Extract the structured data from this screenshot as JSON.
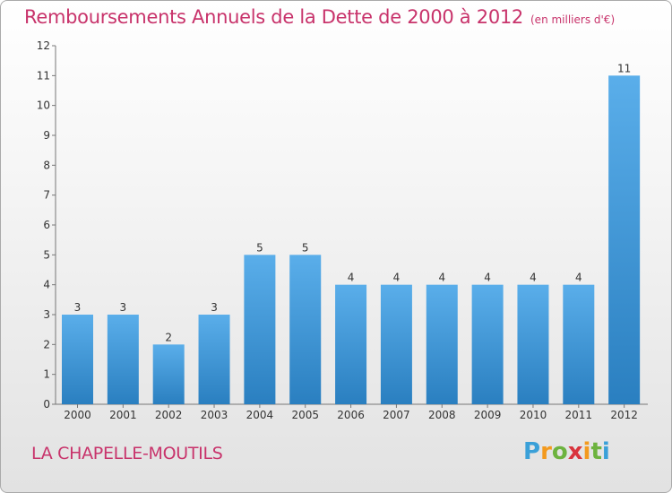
{
  "title": {
    "main": "Remboursements Annuels de la Dette de 2000 à 2012",
    "unit": "(en milliers d'€)"
  },
  "commune": "LA CHAPELLE-MOUTILS",
  "logo": {
    "text": "Proxiti"
  },
  "colors": {
    "accent": "#c8336b",
    "bar_top": "#5aaeea",
    "bar_bottom": "#2a7fc0"
  },
  "chart_data": {
    "type": "bar",
    "categories": [
      "2000",
      "2001",
      "2002",
      "2003",
      "2004",
      "2005",
      "2006",
      "2007",
      "2008",
      "2009",
      "2010",
      "2011",
      "2012"
    ],
    "values": [
      3,
      3,
      2,
      3,
      5,
      5,
      4,
      4,
      4,
      4,
      4,
      4,
      11
    ],
    "ylim": [
      0,
      12
    ],
    "yticks": [
      0,
      1,
      2,
      3,
      4,
      5,
      6,
      7,
      8,
      9,
      10,
      11,
      12
    ],
    "grid": false,
    "xlabel": "",
    "ylabel": ""
  }
}
